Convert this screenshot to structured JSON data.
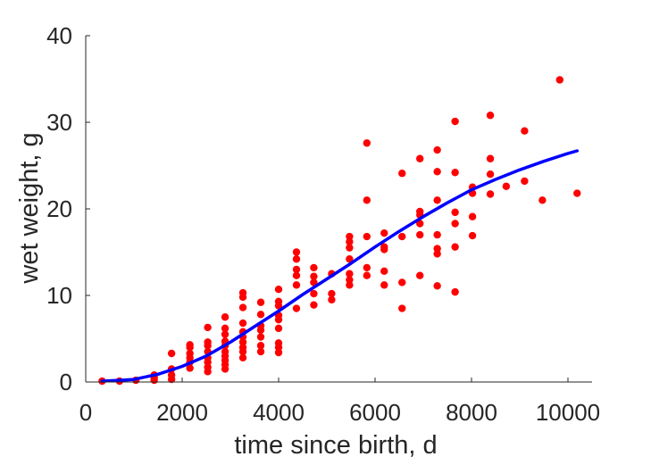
{
  "chart_data": {
    "type": "scatter",
    "xlabel": "time since birth, d",
    "ylabel": "wet weight, g",
    "xlim": [
      0,
      10500
    ],
    "ylim": [
      0,
      40
    ],
    "x_ticks": [
      "0",
      "2000",
      "4000",
      "6000",
      "8000",
      "10000"
    ],
    "y_ticks": [
      "0",
      "10",
      "20",
      "30",
      "40"
    ],
    "x_tick_values": [
      0,
      2000,
      4000,
      6000,
      8000,
      10000
    ],
    "y_tick_values": [
      0,
      10,
      20,
      30,
      40
    ],
    "grid": false,
    "series": [
      {
        "kind": "scatter",
        "color": "#ff0000",
        "points": [
          [
            340,
            0.1
          ],
          [
            700,
            0.1
          ],
          [
            1040,
            0.2
          ],
          [
            1420,
            0.2
          ],
          [
            1420,
            0.5
          ],
          [
            1420,
            0.8
          ],
          [
            1780,
            0.3
          ],
          [
            1780,
            0.8
          ],
          [
            1780,
            1.5
          ],
          [
            1780,
            3.3
          ],
          [
            2160,
            1.6
          ],
          [
            2160,
            2.3
          ],
          [
            2160,
            2.8
          ],
          [
            2160,
            3.3
          ],
          [
            2160,
            4.0
          ],
          [
            2160,
            4.3
          ],
          [
            2530,
            1.2
          ],
          [
            2530,
            1.7
          ],
          [
            2530,
            2.3
          ],
          [
            2530,
            2.8
          ],
          [
            2530,
            3.5
          ],
          [
            2530,
            4.2
          ],
          [
            2530,
            4.6
          ],
          [
            2530,
            6.3
          ],
          [
            2890,
            1.5
          ],
          [
            2890,
            2.0
          ],
          [
            2890,
            2.5
          ],
          [
            2890,
            3.0
          ],
          [
            2890,
            3.5
          ],
          [
            2890,
            4.2
          ],
          [
            2890,
            4.7
          ],
          [
            2890,
            5.5
          ],
          [
            2890,
            6.2
          ],
          [
            2890,
            7.5
          ],
          [
            3260,
            2.8
          ],
          [
            3260,
            3.5
          ],
          [
            3260,
            4.0
          ],
          [
            3260,
            4.6
          ],
          [
            3260,
            5.2
          ],
          [
            3260,
            5.8
          ],
          [
            3260,
            6.8
          ],
          [
            3260,
            8.6
          ],
          [
            3260,
            9.8
          ],
          [
            3260,
            10.3
          ],
          [
            3630,
            3.5
          ],
          [
            3630,
            4.2
          ],
          [
            3630,
            5.2
          ],
          [
            3630,
            6.0
          ],
          [
            3630,
            6.5
          ],
          [
            3630,
            7.8
          ],
          [
            3630,
            9.2
          ],
          [
            4000,
            3.4
          ],
          [
            4000,
            4.0
          ],
          [
            4000,
            4.5
          ],
          [
            4000,
            6.2
          ],
          [
            4000,
            7.2
          ],
          [
            4000,
            7.7
          ],
          [
            4000,
            8.8
          ],
          [
            4000,
            9.3
          ],
          [
            4000,
            10.7
          ],
          [
            4370,
            8.5
          ],
          [
            4370,
            11.2
          ],
          [
            4370,
            12.3
          ],
          [
            4370,
            13.0
          ],
          [
            4370,
            14.2
          ],
          [
            4370,
            15.0
          ],
          [
            4730,
            8.9
          ],
          [
            4730,
            10.2
          ],
          [
            4730,
            11.5
          ],
          [
            4730,
            12.2
          ],
          [
            4730,
            13.2
          ],
          [
            5100,
            9.5
          ],
          [
            5100,
            10.2
          ],
          [
            5100,
            12.5
          ],
          [
            5470,
            11.2
          ],
          [
            5470,
            11.8
          ],
          [
            5470,
            12.5
          ],
          [
            5470,
            14.2
          ],
          [
            5470,
            15.5
          ],
          [
            5470,
            16.2
          ],
          [
            5470,
            16.8
          ],
          [
            5830,
            12.3
          ],
          [
            5830,
            13.2
          ],
          [
            5830,
            16.8
          ],
          [
            5830,
            21.0
          ],
          [
            5830,
            27.6
          ],
          [
            6190,
            11.2
          ],
          [
            6190,
            12.8
          ],
          [
            6190,
            15.3
          ],
          [
            6190,
            15.6
          ],
          [
            6190,
            17.2
          ],
          [
            6560,
            8.5
          ],
          [
            6560,
            11.5
          ],
          [
            6560,
            16.8
          ],
          [
            6560,
            24.1
          ],
          [
            6930,
            12.3
          ],
          [
            6930,
            17.0
          ],
          [
            6930,
            18.3
          ],
          [
            6930,
            19.3
          ],
          [
            6930,
            19.7
          ],
          [
            6930,
            25.8
          ],
          [
            7290,
            11.1
          ],
          [
            7290,
            14.8
          ],
          [
            7290,
            15.4
          ],
          [
            7290,
            17.0
          ],
          [
            7290,
            21.0
          ],
          [
            7290,
            24.3
          ],
          [
            7290,
            26.8
          ],
          [
            7660,
            10.4
          ],
          [
            7660,
            15.6
          ],
          [
            7660,
            18.3
          ],
          [
            7660,
            19.6
          ],
          [
            7660,
            24.2
          ],
          [
            7660,
            30.1
          ],
          [
            8020,
            16.9
          ],
          [
            8020,
            19.1
          ],
          [
            8020,
            21.8
          ],
          [
            8020,
            22.5
          ],
          [
            8390,
            21.7
          ],
          [
            8390,
            24.0
          ],
          [
            8390,
            25.8
          ],
          [
            8390,
            30.8
          ],
          [
            8720,
            22.6
          ],
          [
            9100,
            23.2
          ],
          [
            9100,
            29.0
          ],
          [
            9470,
            21.0
          ],
          [
            9830,
            34.9
          ],
          [
            10190,
            21.8
          ]
        ]
      },
      {
        "kind": "line",
        "color": "#0000ff",
        "points": [
          [
            340,
            0.1
          ],
          [
            700,
            0.2
          ],
          [
            1000,
            0.3
          ],
          [
            1500,
            0.9
          ],
          [
            2000,
            1.8
          ],
          [
            2500,
            3.0
          ],
          [
            3000,
            4.6
          ],
          [
            3500,
            6.4
          ],
          [
            4000,
            8.2
          ],
          [
            4500,
            10.1
          ],
          [
            5000,
            11.9
          ],
          [
            5500,
            13.7
          ],
          [
            6000,
            15.6
          ],
          [
            6500,
            17.4
          ],
          [
            7000,
            19.1
          ],
          [
            7500,
            20.7
          ],
          [
            8000,
            22.2
          ],
          [
            8500,
            23.4
          ],
          [
            9000,
            24.5
          ],
          [
            9500,
            25.5
          ],
          [
            10000,
            26.4
          ],
          [
            10190,
            26.7
          ]
        ]
      }
    ]
  }
}
